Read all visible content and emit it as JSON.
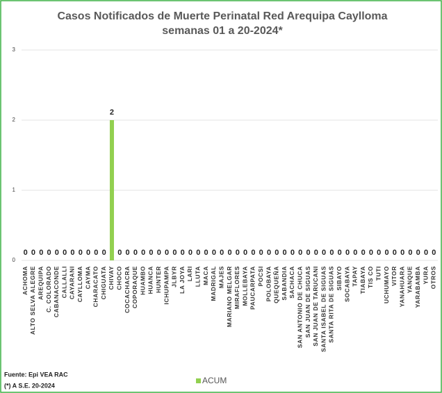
{
  "chart_data": {
    "type": "bar",
    "title": "Casos Notificados de Muerte Perinatal Red Arequipa Caylloma",
    "subtitle": "semanas 01 a 20-2024*",
    "categories": [
      "ACHOMA",
      "ALTO SELVA ALEGRE",
      "AREQUIPA",
      "C. COLORADO",
      "CABANACONDE",
      "CALLALLI",
      "CAYARANI",
      "CAYLLOMA",
      "CAYMA",
      "CHARACATO",
      "CHIGUATA",
      "CHIVAY",
      "CHOCO",
      "COCACHACRA",
      "COPORAQUE",
      "HUAMBO",
      "HUANCA",
      "HUNTER",
      "ICHUPAMPA",
      "JLBYR",
      "LA JOYA",
      "LARI",
      "LLUTA",
      "MACA",
      "MADRIGAL",
      "MAJES",
      "MARIANO MELGAR",
      "MIRAFLORES",
      "MOLLEBAYA",
      "PAUCARPATA",
      "POCSI",
      "POLOBAYA",
      "QUEQUEÑA",
      "SABANDIA",
      "SACHACA",
      "SAN ANTONIO DE CHUCA",
      "SAN JUAN DE SIGUAS",
      "SAN JUAN DE TARUCANI",
      "SANTA ISABEL DE SIGUAS",
      "SANTA RITA DE SIGUAS",
      "SIBAYO",
      "SOCABAYA",
      "TAPAY",
      "TIABAYA",
      "TIS CO",
      "TUTI",
      "UCHUMAYO",
      "VITOR",
      "YANAHUARA",
      "YANQUE",
      "YARABAMBA",
      "YURA",
      "OTROS"
    ],
    "series": [
      {
        "name": "ACUM",
        "color": "#92d050",
        "values": [
          0,
          0,
          0,
          0,
          0,
          0,
          0,
          0,
          0,
          0,
          0,
          2,
          0,
          0,
          0,
          0,
          0,
          0,
          0,
          0,
          0,
          0,
          0,
          0,
          0,
          0,
          0,
          0,
          0,
          0,
          0,
          0,
          0,
          0,
          0,
          0,
          0,
          0,
          0,
          0,
          0,
          0,
          0,
          0,
          0,
          0,
          0,
          0,
          0,
          0,
          0,
          0,
          0
        ]
      }
    ],
    "ylim": [
      0,
      3
    ],
    "yticks": [
      0,
      1,
      2,
      3
    ],
    "grid": true,
    "source": "Fuente: Epi VEA RAC",
    "footnote": "(*) A S.E. 20-2024"
  }
}
